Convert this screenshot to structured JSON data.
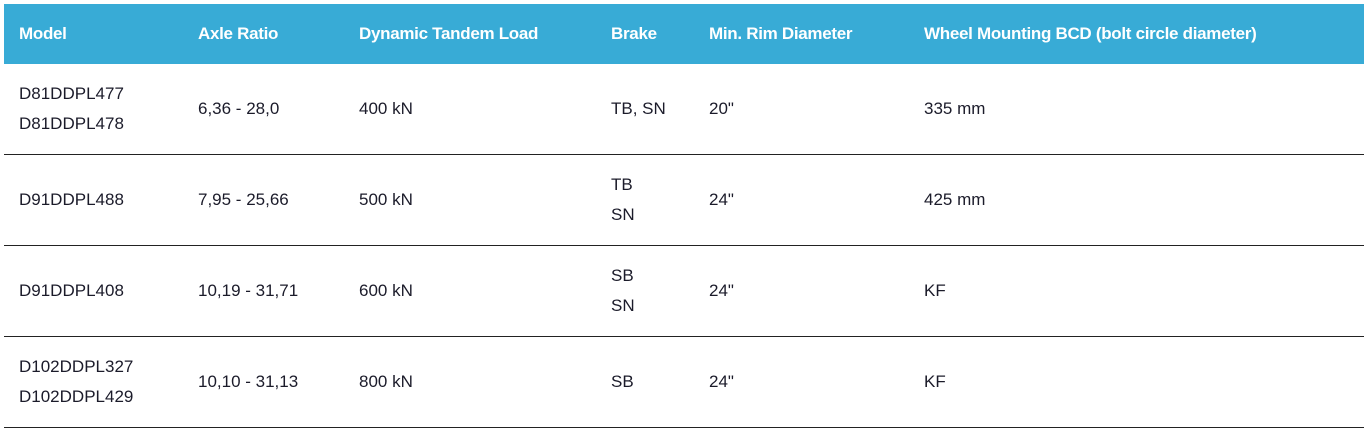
{
  "headers": [
    "Model",
    "Axle Ratio",
    "Dynamic Tandem Load",
    "Brake",
    "Min. Rim Diameter",
    "Wheel Mounting BCD (bolt circle diameter)"
  ],
  "rows": [
    {
      "model": [
        "D81DDPL477",
        "D81DDPL478"
      ],
      "ratio": "6,36 - 28,0",
      "load": "400 kN",
      "brake": [
        "TB, SN"
      ],
      "rim": "20\"",
      "bcd": "335 mm"
    },
    {
      "model": [
        "D91DDPL488"
      ],
      "ratio": "7,95 - 25,66",
      "load": "500 kN",
      "brake": [
        "TB",
        "SN"
      ],
      "rim": "24\"",
      "bcd": "425 mm"
    },
    {
      "model": [
        "D91DDPL408"
      ],
      "ratio": "10,19 - 31,71",
      "load": "600 kN",
      "brake": [
        "SB",
        "SN"
      ],
      "rim": "24\"",
      "bcd": "KF"
    },
    {
      "model": [
        "D102DDPL327",
        "D102DDPL429"
      ],
      "ratio": "10,10 - 31,13",
      "load": "800 kN",
      "brake": [
        "SB"
      ],
      "rim": "24\"",
      "bcd": "KF"
    }
  ]
}
